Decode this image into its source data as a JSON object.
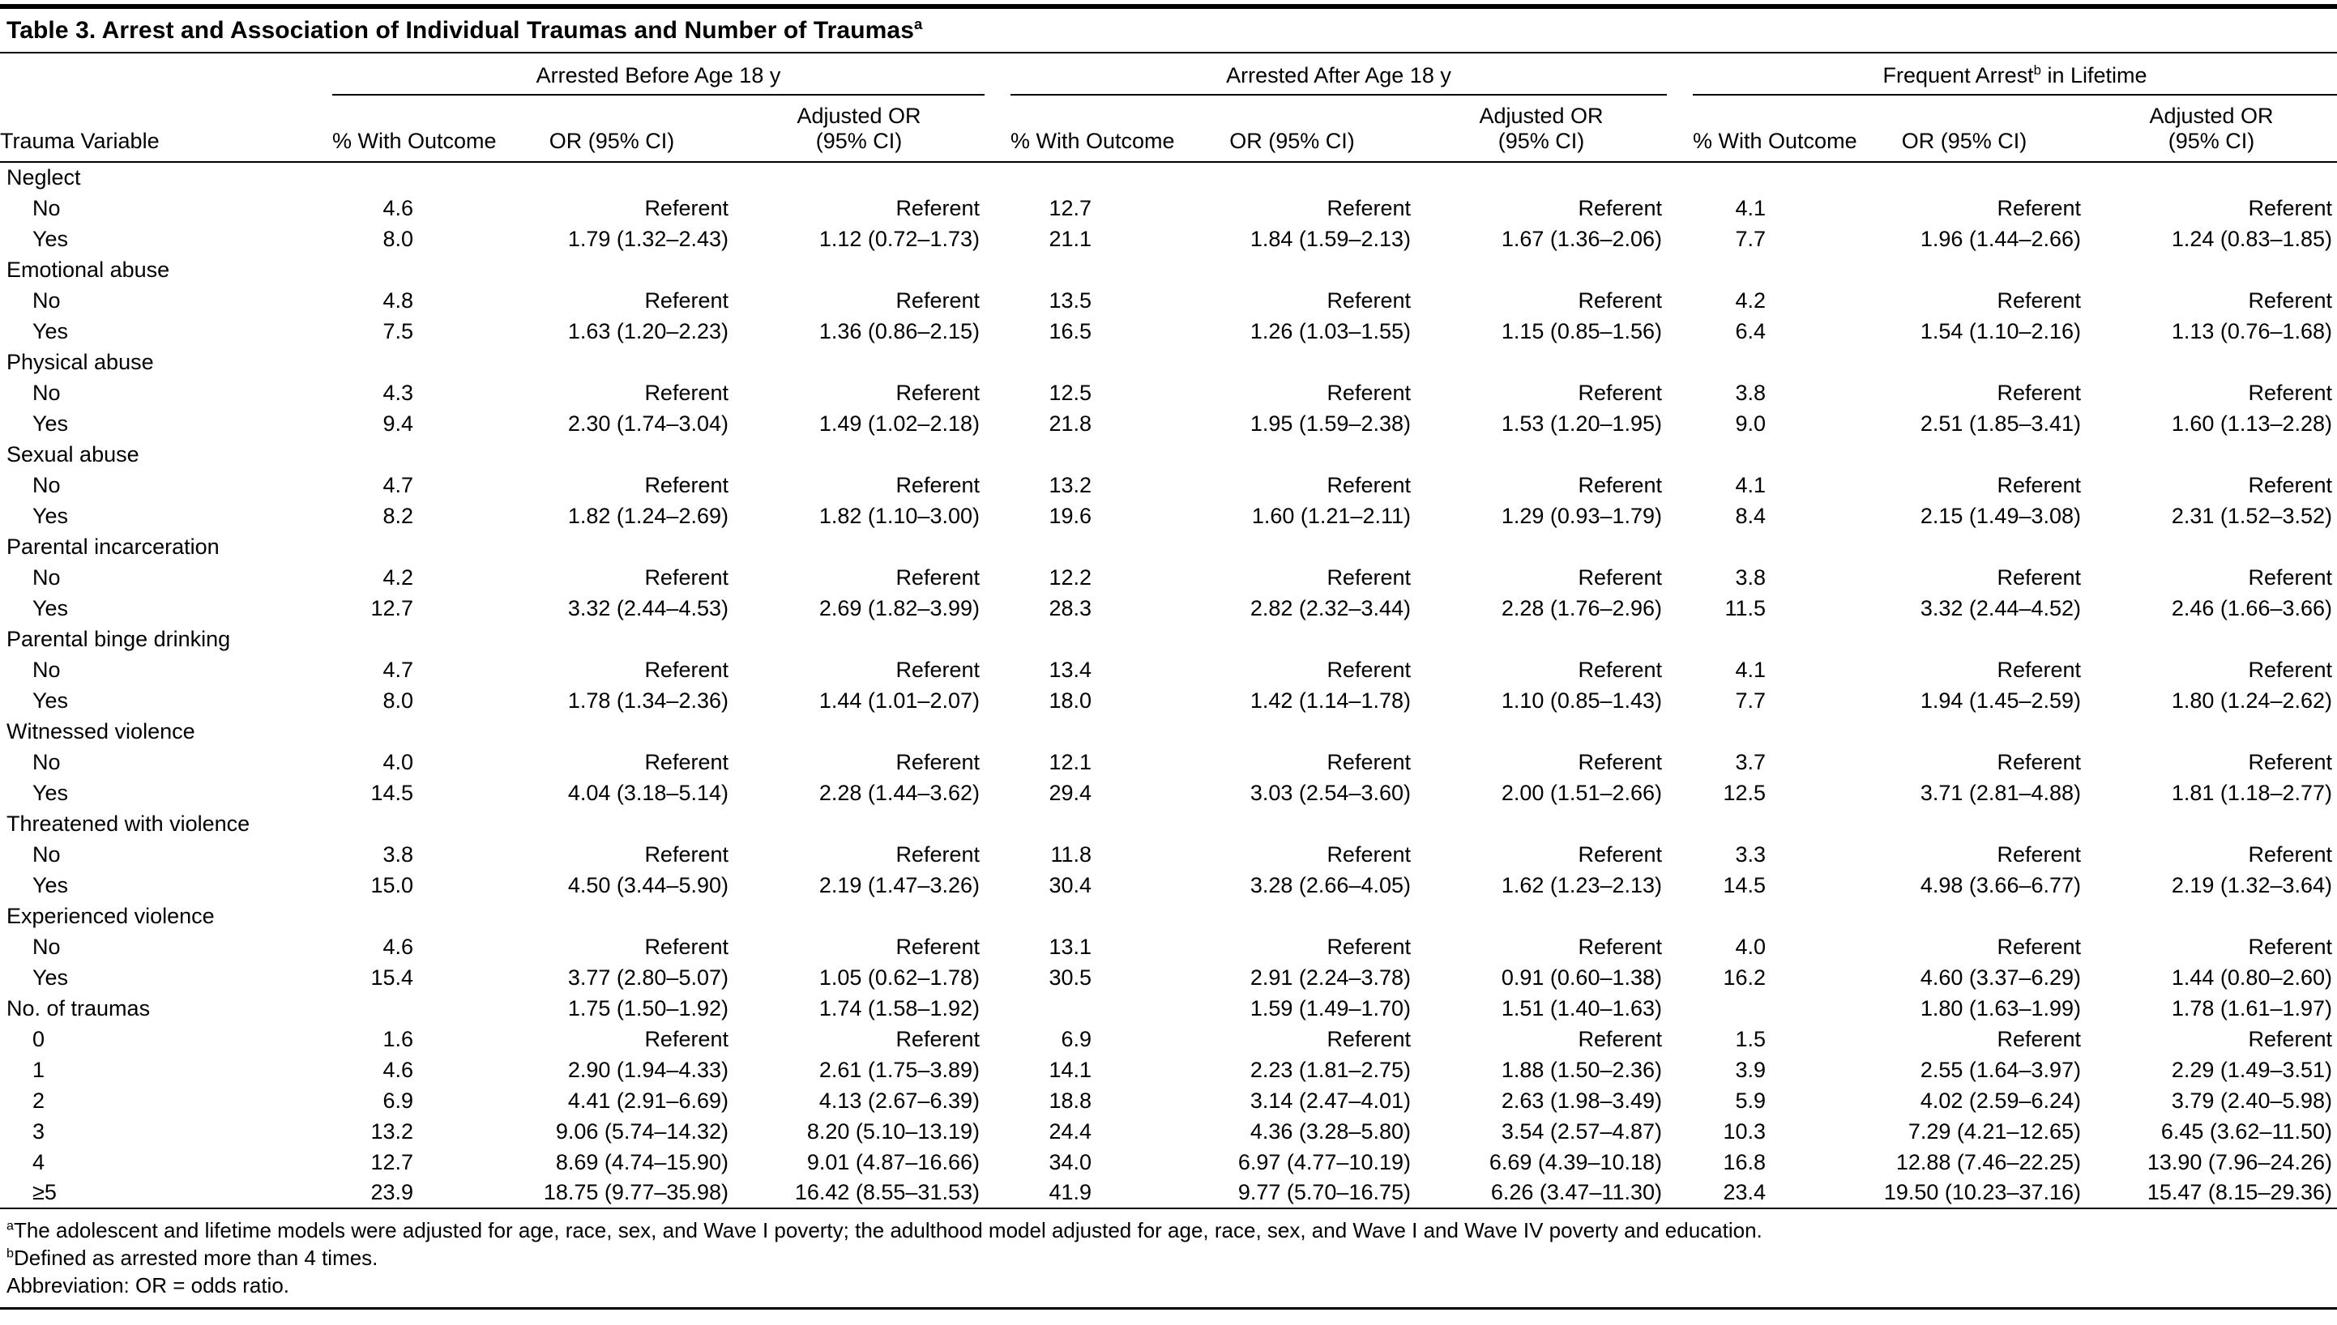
{
  "colors": {
    "text": "#000000",
    "rule": "#000000",
    "background": "#ffffff"
  },
  "table": {
    "title": "Table 3. Arrest and Association of Individual Traumas and Number of Traumas",
    "title_sup": "a",
    "first_column_header": "Trauma Variable",
    "groups": [
      {
        "pre": "Arrested Before Age 18 y",
        "sup": "",
        "post": ""
      },
      {
        "pre": "Arrested After Age 18 y",
        "sup": "",
        "post": ""
      },
      {
        "pre": "Frequent Arrest",
        "sup": "b",
        "post": " in Lifetime"
      }
    ],
    "subheaders": {
      "pct": "% With Outcome",
      "or": "OR (95% CI)",
      "adj_line1": "Adjusted OR",
      "adj_line2": "(95% CI)"
    },
    "rows": [
      {
        "label": "Neglect",
        "indent": 0,
        "cells": [
          "",
          "",
          "",
          "",
          "",
          "",
          "",
          "",
          ""
        ]
      },
      {
        "label": "No",
        "indent": 1,
        "cells": [
          "4.6",
          "Referent",
          "Referent",
          "12.7",
          "Referent",
          "Referent",
          "4.1",
          "Referent",
          "Referent"
        ]
      },
      {
        "label": "Yes",
        "indent": 1,
        "cells": [
          "8.0",
          "1.79 (1.32–2.43)",
          "1.12 (0.72–1.73)",
          "21.1",
          "1.84 (1.59–2.13)",
          "1.67 (1.36–2.06)",
          "7.7",
          "1.96 (1.44–2.66)",
          "1.24 (0.83–1.85)"
        ]
      },
      {
        "label": "Emotional abuse",
        "indent": 0,
        "cells": [
          "",
          "",
          "",
          "",
          "",
          "",
          "",
          "",
          ""
        ]
      },
      {
        "label": "No",
        "indent": 1,
        "cells": [
          "4.8",
          "Referent",
          "Referent",
          "13.5",
          "Referent",
          "Referent",
          "4.2",
          "Referent",
          "Referent"
        ]
      },
      {
        "label": "Yes",
        "indent": 1,
        "cells": [
          "7.5",
          "1.63 (1.20–2.23)",
          "1.36 (0.86–2.15)",
          "16.5",
          "1.26 (1.03–1.55)",
          "1.15 (0.85–1.56)",
          "6.4",
          "1.54 (1.10–2.16)",
          "1.13 (0.76–1.68)"
        ]
      },
      {
        "label": "Physical abuse",
        "indent": 0,
        "cells": [
          "",
          "",
          "",
          "",
          "",
          "",
          "",
          "",
          ""
        ]
      },
      {
        "label": "No",
        "indent": 1,
        "cells": [
          "4.3",
          "Referent",
          "Referent",
          "12.5",
          "Referent",
          "Referent",
          "3.8",
          "Referent",
          "Referent"
        ]
      },
      {
        "label": "Yes",
        "indent": 1,
        "cells": [
          "9.4",
          "2.30 (1.74–3.04)",
          "1.49 (1.02–2.18)",
          "21.8",
          "1.95 (1.59–2.38)",
          "1.53 (1.20–1.95)",
          "9.0",
          "2.51 (1.85–3.41)",
          "1.60 (1.13–2.28)"
        ]
      },
      {
        "label": "Sexual abuse",
        "indent": 0,
        "cells": [
          "",
          "",
          "",
          "",
          "",
          "",
          "",
          "",
          ""
        ]
      },
      {
        "label": "No",
        "indent": 1,
        "cells": [
          "4.7",
          "Referent",
          "Referent",
          "13.2",
          "Referent",
          "Referent",
          "4.1",
          "Referent",
          "Referent"
        ]
      },
      {
        "label": "Yes",
        "indent": 1,
        "cells": [
          "8.2",
          "1.82 (1.24–2.69)",
          "1.82 (1.10–3.00)",
          "19.6",
          "1.60 (1.21–2.11)",
          "1.29 (0.93–1.79)",
          "8.4",
          "2.15 (1.49–3.08)",
          "2.31 (1.52–3.52)"
        ]
      },
      {
        "label": "Parental incarceration",
        "indent": 0,
        "cells": [
          "",
          "",
          "",
          "",
          "",
          "",
          "",
          "",
          ""
        ]
      },
      {
        "label": "No",
        "indent": 1,
        "cells": [
          "4.2",
          "Referent",
          "Referent",
          "12.2",
          "Referent",
          "Referent",
          "3.8",
          "Referent",
          "Referent"
        ]
      },
      {
        "label": "Yes",
        "indent": 1,
        "cells": [
          "12.7",
          "3.32 (2.44–4.53)",
          "2.69 (1.82–3.99)",
          "28.3",
          "2.82 (2.32–3.44)",
          "2.28 (1.76–2.96)",
          "11.5",
          "3.32 (2.44–4.52)",
          "2.46 (1.66–3.66)"
        ]
      },
      {
        "label": "Parental binge drinking",
        "indent": 0,
        "cells": [
          "",
          "",
          "",
          "",
          "",
          "",
          "",
          "",
          ""
        ]
      },
      {
        "label": "No",
        "indent": 1,
        "cells": [
          "4.7",
          "Referent",
          "Referent",
          "13.4",
          "Referent",
          "Referent",
          "4.1",
          "Referent",
          "Referent"
        ]
      },
      {
        "label": "Yes",
        "indent": 1,
        "cells": [
          "8.0",
          "1.78 (1.34–2.36)",
          "1.44 (1.01–2.07)",
          "18.0",
          "1.42 (1.14–1.78)",
          "1.10 (0.85–1.43)",
          "7.7",
          "1.94 (1.45–2.59)",
          "1.80 (1.24–2.62)"
        ]
      },
      {
        "label": "Witnessed violence",
        "indent": 0,
        "cells": [
          "",
          "",
          "",
          "",
          "",
          "",
          "",
          "",
          ""
        ]
      },
      {
        "label": "No",
        "indent": 1,
        "cells": [
          "4.0",
          "Referent",
          "Referent",
          "12.1",
          "Referent",
          "Referent",
          "3.7",
          "Referent",
          "Referent"
        ]
      },
      {
        "label": "Yes",
        "indent": 1,
        "cells": [
          "14.5",
          "4.04 (3.18–5.14)",
          "2.28 (1.44–3.62)",
          "29.4",
          "3.03 (2.54–3.60)",
          "2.00 (1.51–2.66)",
          "12.5",
          "3.71 (2.81–4.88)",
          "1.81 (1.18–2.77)"
        ]
      },
      {
        "label": "Threatened with violence",
        "indent": 0,
        "cells": [
          "",
          "",
          "",
          "",
          "",
          "",
          "",
          "",
          ""
        ]
      },
      {
        "label": "No",
        "indent": 1,
        "cells": [
          "3.8",
          "Referent",
          "Referent",
          "11.8",
          "Referent",
          "Referent",
          "3.3",
          "Referent",
          "Referent"
        ]
      },
      {
        "label": "Yes",
        "indent": 1,
        "cells": [
          "15.0",
          "4.50 (3.44–5.90)",
          "2.19 (1.47–3.26)",
          "30.4",
          "3.28 (2.66–4.05)",
          "1.62 (1.23–2.13)",
          "14.5",
          "4.98 (3.66–6.77)",
          "2.19 (1.32–3.64)"
        ]
      },
      {
        "label": "Experienced violence",
        "indent": 0,
        "cells": [
          "",
          "",
          "",
          "",
          "",
          "",
          "",
          "",
          ""
        ]
      },
      {
        "label": "No",
        "indent": 1,
        "cells": [
          "4.6",
          "Referent",
          "Referent",
          "13.1",
          "Referent",
          "Referent",
          "4.0",
          "Referent",
          "Referent"
        ]
      },
      {
        "label": "Yes",
        "indent": 1,
        "cells": [
          "15.4",
          "3.77 (2.80–5.07)",
          "1.05 (0.62–1.78)",
          "30.5",
          "2.91 (2.24–3.78)",
          "0.91 (0.60–1.38)",
          "16.2",
          "4.60 (3.37–6.29)",
          "1.44 (0.80–2.60)"
        ]
      },
      {
        "label": "No. of traumas",
        "indent": 0,
        "cells": [
          "",
          "1.75 (1.50–1.92)",
          "1.74 (1.58–1.92)",
          "",
          "1.59 (1.49–1.70)",
          "1.51 (1.40–1.63)",
          "",
          "1.80 (1.63–1.99)",
          "1.78 (1.61–1.97)"
        ]
      },
      {
        "label": "0",
        "indent": 1,
        "cells": [
          "1.6",
          "Referent",
          "Referent",
          "6.9",
          "Referent",
          "Referent",
          "1.5",
          "Referent",
          "Referent"
        ]
      },
      {
        "label": "1",
        "indent": 1,
        "cells": [
          "4.6",
          "2.90 (1.94–4.33)",
          "2.61 (1.75–3.89)",
          "14.1",
          "2.23 (1.81–2.75)",
          "1.88 (1.50–2.36)",
          "3.9",
          "2.55 (1.64–3.97)",
          "2.29 (1.49–3.51)"
        ]
      },
      {
        "label": "2",
        "indent": 1,
        "cells": [
          "6.9",
          "4.41 (2.91–6.69)",
          "4.13 (2.67–6.39)",
          "18.8",
          "3.14 (2.47–4.01)",
          "2.63 (1.98–3.49)",
          "5.9",
          "4.02 (2.59–6.24)",
          "3.79 (2.40–5.98)"
        ]
      },
      {
        "label": "3",
        "indent": 1,
        "cells": [
          "13.2",
          "9.06 (5.74–14.32)",
          "8.20 (5.10–13.19)",
          "24.4",
          "4.36 (3.28–5.80)",
          "3.54 (2.57–4.87)",
          "10.3",
          "7.29 (4.21–12.65)",
          "6.45 (3.62–11.50)"
        ]
      },
      {
        "label": "4",
        "indent": 1,
        "cells": [
          "12.7",
          "8.69 (4.74–15.90)",
          "9.01 (4.87–16.66)",
          "34.0",
          "6.97 (4.77–10.19)",
          "6.69 (4.39–10.18)",
          "16.8",
          "12.88 (7.46–22.25)",
          "13.90 (7.96–24.26)"
        ]
      },
      {
        "label": "≥5",
        "indent": 1,
        "cells": [
          "23.9",
          "18.75 (9.77–35.98)",
          "16.42 (8.55–31.53)",
          "41.9",
          "9.77 (5.70–16.75)",
          "6.26 (3.47–11.30)",
          "23.4",
          "19.50 (10.23–37.16)",
          "15.47 (8.15–29.36)"
        ]
      }
    ]
  },
  "footnotes": [
    {
      "sup": "a",
      "text": "The adolescent and lifetime models were adjusted for age, race, sex, and Wave I poverty; the adulthood model adjusted for age, race, sex, and Wave I and Wave IV poverty and education."
    },
    {
      "sup": "b",
      "text": "Defined as arrested more than 4 times."
    },
    {
      "sup": "",
      "text": "Abbreviation: OR = odds ratio."
    }
  ]
}
